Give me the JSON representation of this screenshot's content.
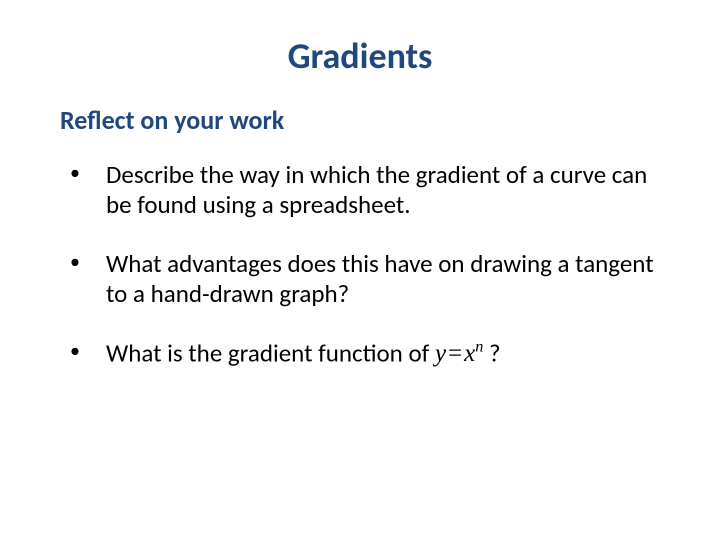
{
  "slide": {
    "title": "Gradients",
    "subtitle": "Reflect on your work",
    "title_color": "#1f497d",
    "subtitle_color": "#1f497d",
    "body_color": "#000000",
    "background_color": "#ffffff",
    "title_fontsize": 36,
    "subtitle_fontsize": 26,
    "body_fontsize": 25,
    "bullets": [
      {
        "text": "Describe the way in which the gradient of a curve can be found using a spreadsheet."
      },
      {
        "text": "What advantages does this have on drawing a tangent to a hand-drawn graph?"
      },
      {
        "text_before": "What is the gradient function of ",
        "equation": {
          "lhs": "y",
          "op": "=",
          "rhs_base": "x",
          "rhs_sup": "n"
        },
        "text_after": " ?"
      }
    ]
  }
}
